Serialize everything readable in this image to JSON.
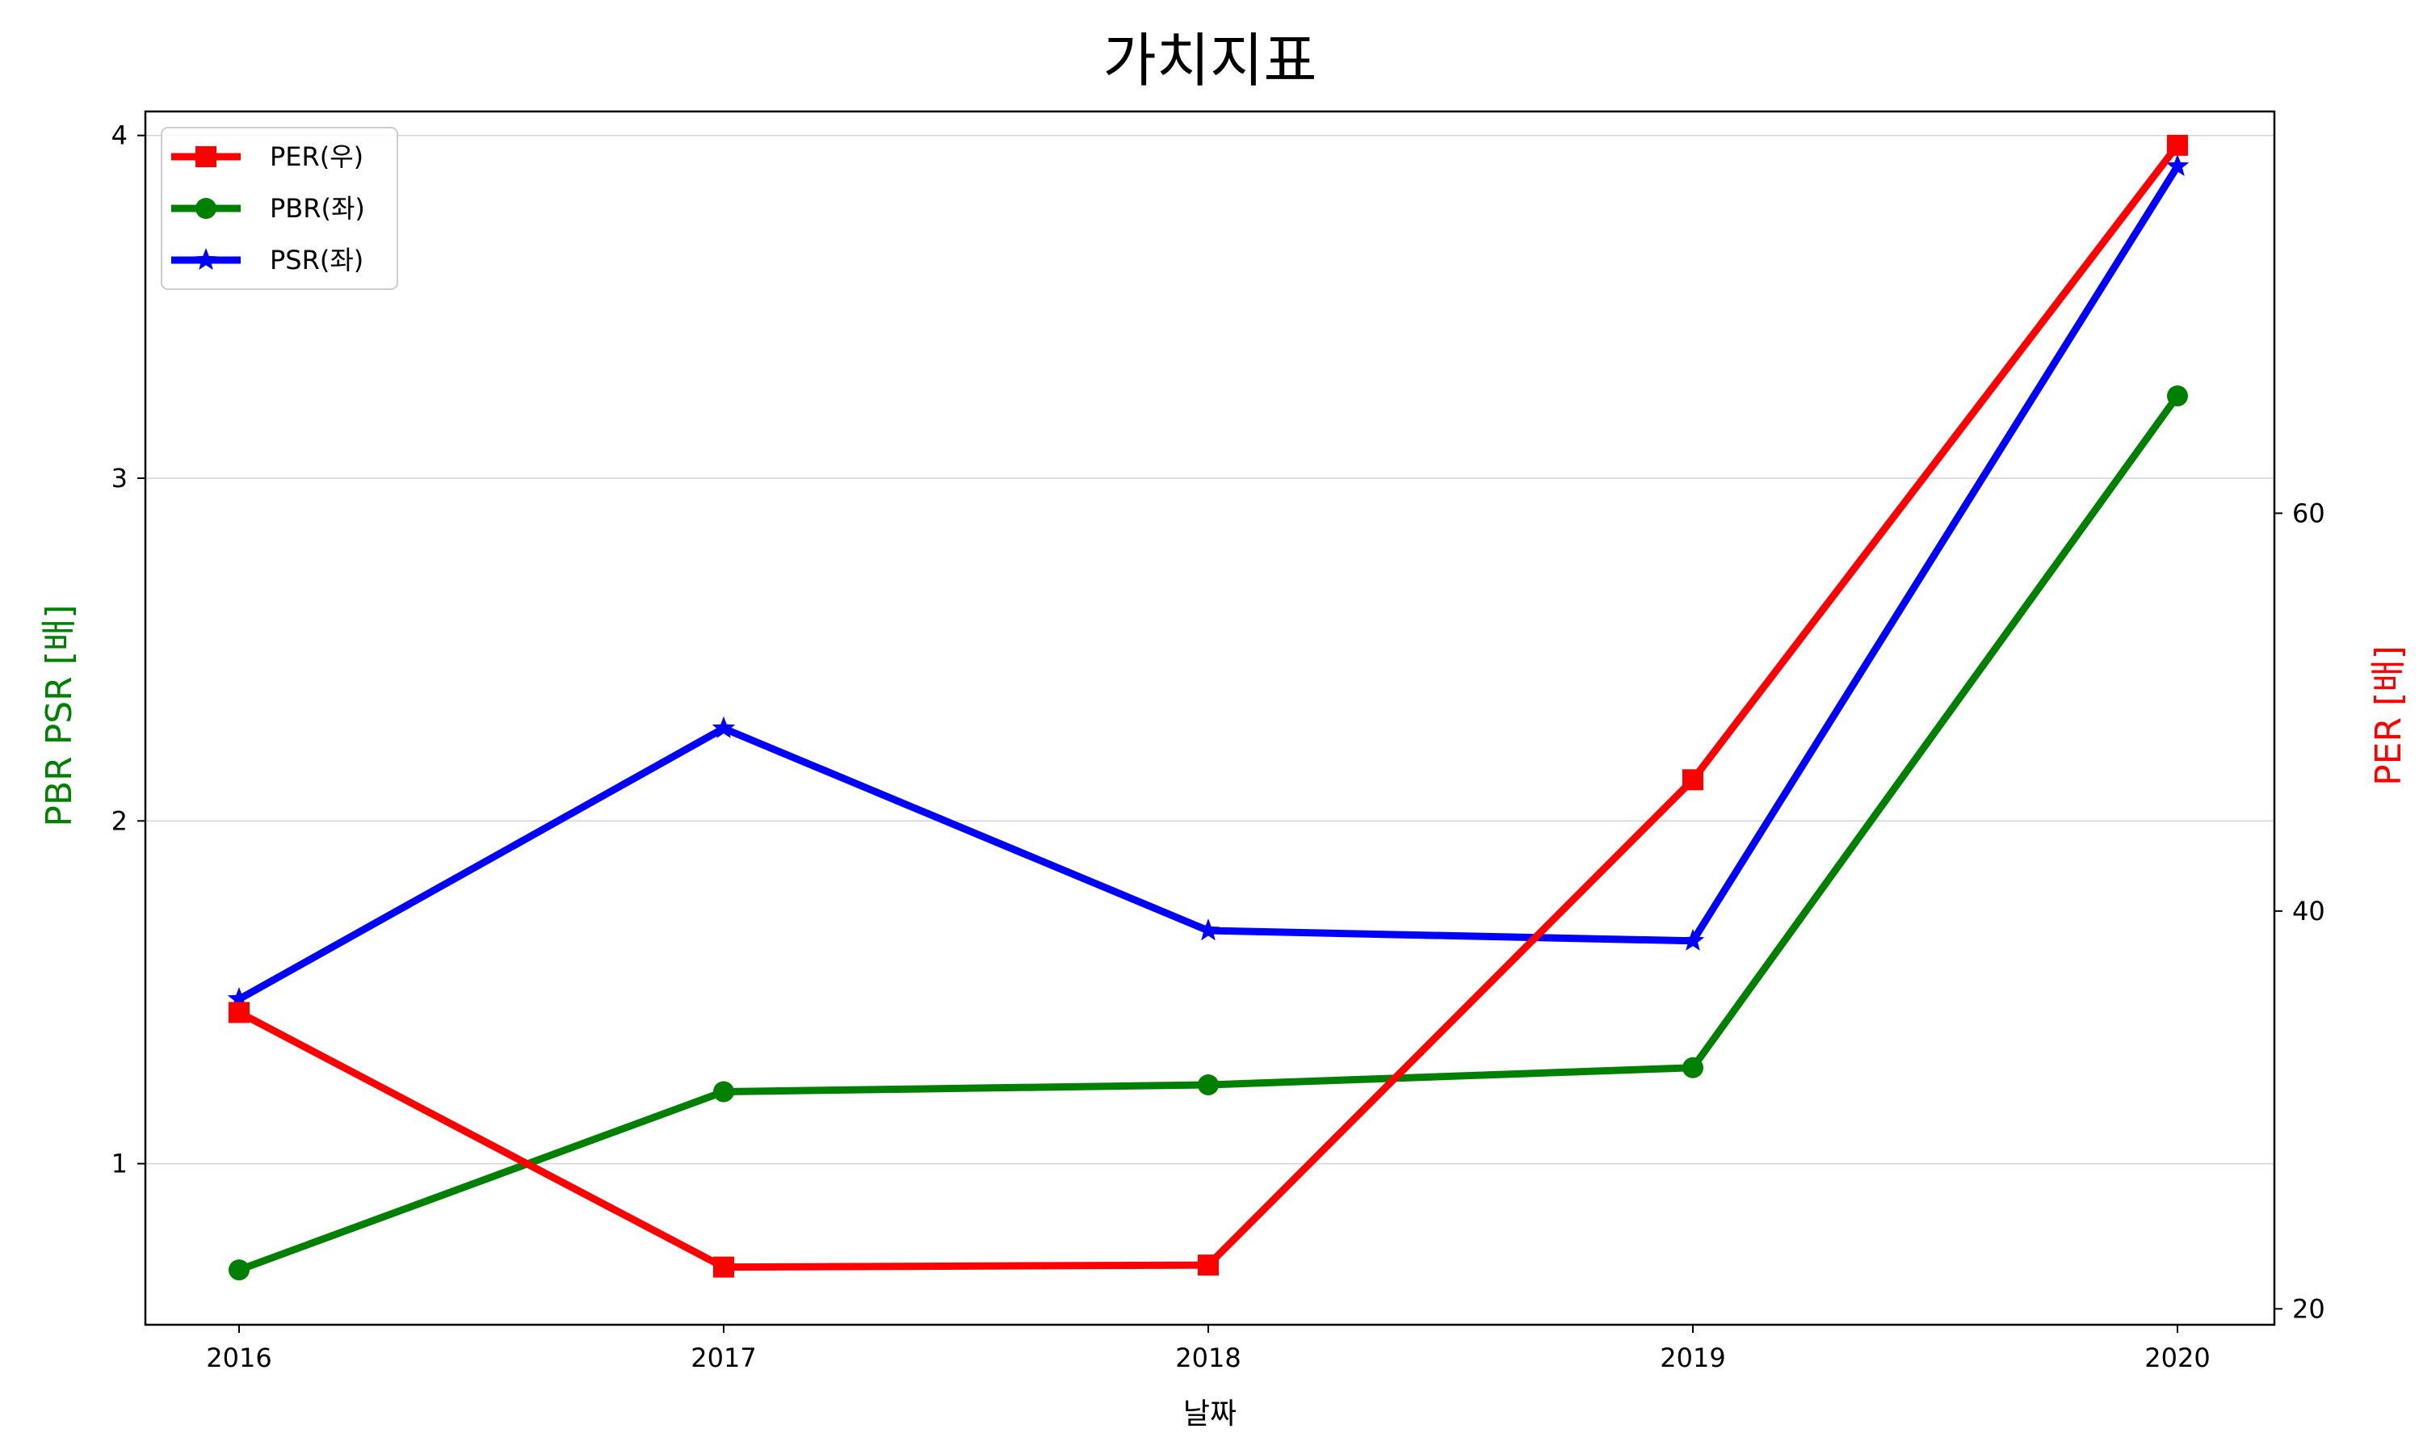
{
  "chart_data": {
    "type": "line",
    "title": "가치지표",
    "xlabel": "날짜",
    "ylabel_left": "PBR PSR [배]",
    "ylabel_right": "PER [배]",
    "x": [
      "2016",
      "2017",
      "2018",
      "2019",
      "2020"
    ],
    "y_left": {
      "ticks": [
        "1",
        "2",
        "3",
        "4"
      ],
      "ylim": [
        0.53,
        4.07
      ]
    },
    "y_right": {
      "ticks": [
        "20",
        "40",
        "60"
      ],
      "ylim": [
        19.2,
        80.2
      ]
    },
    "grid": "horizontal-left",
    "legend_placement": "upper-left",
    "series": [
      {
        "name": "PER(우)",
        "axis": "right",
        "marker": "square",
        "color": "#ff0000",
        "values": [
          34.9,
          22.1,
          22.2,
          46.6,
          78.5
        ]
      },
      {
        "name": "PBR(좌)",
        "axis": "left",
        "marker": "circle",
        "color": "#008000",
        "values": [
          0.69,
          1.21,
          1.23,
          1.28,
          3.24
        ]
      },
      {
        "name": "PSR(좌)",
        "axis": "left",
        "marker": "star",
        "color": "#0000ff",
        "values": [
          1.48,
          2.27,
          1.68,
          1.65,
          3.91
        ]
      }
    ],
    "colors": {
      "left_label": "#008000",
      "right_label": "#ff0000",
      "grid": "#d3d3d3"
    }
  }
}
